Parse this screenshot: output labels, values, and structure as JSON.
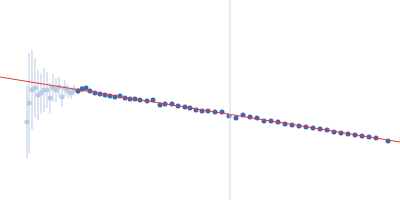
{
  "chart_data": {
    "type": "scatter",
    "xlim": [
      0,
      400
    ],
    "ylim": [
      0,
      200
    ],
    "xticks": [],
    "yticks": [],
    "tick_labels": false,
    "grid": false,
    "series": [
      {
        "type": "scatter",
        "color": "#b9cbe4",
        "marker": "circle",
        "x": [
          27,
          29,
          32,
          35,
          38,
          41,
          44,
          47,
          50,
          53,
          56,
          59,
          62,
          65,
          68,
          71,
          74
        ],
        "values": [
          78,
          97,
          110,
          112,
          105,
          107,
          110,
          110,
          102,
          112,
          110,
          113,
          103,
          112,
          109,
          107,
          110
        ],
        "errors": [
          36,
          50,
          40,
          30,
          25,
          20,
          22,
          18,
          15,
          14,
          12,
          10,
          10,
          8,
          7,
          6,
          5
        ]
      },
      {
        "type": "scatter",
        "color": "#3b67b3",
        "marker": "circle",
        "x": [
          78,
          82,
          86,
          90,
          95,
          100,
          105,
          110,
          115,
          120,
          125,
          130,
          135,
          140,
          147,
          153,
          160,
          165,
          172,
          178,
          185,
          190,
          196,
          202,
          208,
          215,
          222,
          229,
          236,
          243,
          250,
          257,
          264,
          271,
          278,
          285,
          292,
          299,
          306,
          313,
          320,
          327,
          334,
          341,
          348,
          355,
          362,
          369,
          376,
          388
        ],
        "values": [
          109,
          111,
          112,
          109,
          107,
          106,
          105,
          104,
          103,
          104,
          102,
          101,
          101,
          100,
          99,
          100,
          95,
          96,
          96,
          94,
          93,
          92,
          90,
          89,
          89,
          88,
          88,
          84,
          82,
          85,
          83,
          82,
          79,
          79,
          78,
          76,
          75,
          74,
          73,
          72,
          71,
          70,
          68,
          67,
          66,
          65,
          64,
          63,
          62,
          59
        ],
        "errors": [
          3,
          3,
          2,
          2,
          2,
          2,
          2,
          2,
          2,
          2,
          2,
          2,
          2,
          2,
          2,
          2,
          2,
          2,
          2,
          2,
          2,
          2,
          2,
          2,
          2,
          2,
          2,
          2,
          2,
          2,
          2,
          2,
          2,
          2,
          2,
          2,
          2,
          2,
          2,
          2,
          2,
          2,
          2,
          2,
          2,
          2,
          2,
          2,
          2,
          2
        ]
      },
      {
        "type": "line",
        "color": "#e03a3a",
        "line_style": "solid",
        "x": [
          0,
          400
        ],
        "values": [
          123,
          58
        ]
      },
      {
        "type": "line",
        "color": "#cdd8ea",
        "line_style": "solid",
        "x": [
          230,
          230
        ],
        "values": [
          0,
          200
        ]
      }
    ]
  }
}
